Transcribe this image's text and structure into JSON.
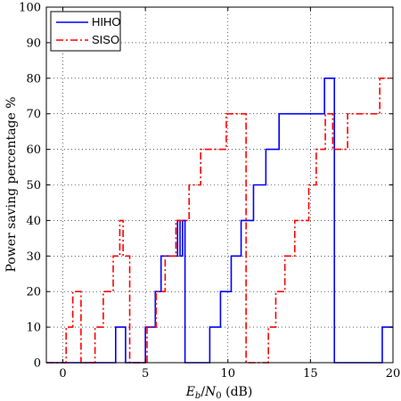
{
  "chart_data": {
    "type": "line",
    "title": "",
    "xlabel": "E_b/N_0 (dB)",
    "ylabel": "Power saving percentage %",
    "xlim": [
      -1,
      20
    ],
    "ylim": [
      0,
      100
    ],
    "xticks": [
      0,
      5,
      10,
      15,
      20
    ],
    "yticks": [
      0,
      10,
      20,
      30,
      40,
      50,
      60,
      70,
      80,
      90,
      100
    ],
    "grid": true,
    "legend_position": "top-left",
    "series": [
      {
        "name": "HIHO",
        "color": "#0000ff",
        "style": "solid",
        "x": [
          -1,
          3.2,
          3.2,
          3.8,
          3.8,
          5.0,
          5.0,
          5.6,
          5.6,
          5.95,
          5.95,
          6.3,
          6.3,
          6.7,
          6.7,
          6.95,
          6.95,
          7.1,
          7.1,
          7.25,
          7.25,
          7.4,
          7.4,
          8.9,
          8.9,
          9.55,
          9.55,
          10.2,
          10.2,
          10.8,
          10.8,
          11.55,
          11.55,
          12.3,
          12.3,
          13.1,
          13.1,
          13.95,
          13.95,
          15.85,
          15.85,
          16.45,
          16.45,
          16.75,
          16.75,
          19.35,
          19.35,
          20
        ],
        "y": [
          0,
          0,
          10,
          10,
          0,
          0,
          10,
          10,
          20,
          20,
          30,
          30,
          30,
          30,
          30,
          30,
          40,
          40,
          30,
          30,
          40,
          40,
          0,
          0,
          10,
          10,
          20,
          20,
          30,
          30,
          40,
          40,
          50,
          50,
          60,
          60,
          70,
          70,
          70,
          70,
          80,
          80,
          0,
          0,
          0,
          0,
          10,
          10
        ]
      },
      {
        "name": "SISO",
        "color": "#ff0000",
        "style": "dashdot",
        "x": [
          -1,
          0.2,
          0.2,
          0.6,
          0.6,
          1.1,
          1.1,
          1.95,
          1.95,
          2.45,
          2.45,
          3.05,
          3.05,
          3.45,
          3.45,
          3.65,
          3.65,
          4.05,
          4.05,
          5.1,
          5.1,
          5.65,
          5.65,
          6.2,
          6.2,
          6.45,
          6.45,
          6.85,
          6.85,
          7.3,
          7.3,
          7.65,
          7.65,
          8.35,
          8.35,
          8.9,
          8.9,
          9.9,
          9.9,
          11.1,
          11.1,
          12.45,
          12.45,
          12.9,
          12.9,
          13.45,
          13.45,
          14.05,
          14.05,
          14.9,
          14.9,
          15.35,
          15.35,
          15.9,
          15.9,
          16.35,
          16.35,
          17.25,
          17.25,
          17.85,
          17.85,
          19.2,
          19.2,
          19.9
        ],
        "y": [
          0,
          0,
          10,
          10,
          20,
          20,
          0,
          0,
          10,
          10,
          20,
          20,
          30,
          30,
          40,
          40,
          30,
          30,
          0,
          0,
          10,
          10,
          20,
          20,
          30,
          30,
          30,
          30,
          40,
          40,
          40,
          40,
          50,
          50,
          60,
          60,
          60,
          60,
          70,
          70,
          0,
          0,
          10,
          10,
          20,
          20,
          30,
          30,
          40,
          40,
          50,
          50,
          60,
          60,
          70,
          70,
          60,
          60,
          70,
          70,
          70,
          70,
          80,
          80
        ]
      }
    ]
  }
}
